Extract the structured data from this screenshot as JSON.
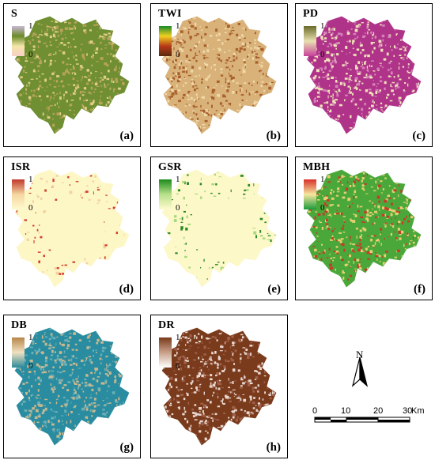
{
  "panels": [
    {
      "id": "a",
      "title": "S",
      "hi": "1",
      "lo": "0",
      "label": "(a)",
      "legend": [
        "#c9b8d6",
        "#6a8a2a",
        "#f3e6a8",
        "#f8d0c8"
      ],
      "base": "#6f8f32",
      "speck": "#b7a35a",
      "speck2": "#e0cf87"
    },
    {
      "id": "b",
      "title": "TWI",
      "hi": "1",
      "lo": "0",
      "label": "(b)",
      "legend": [
        "#1a8a2a",
        "#f0d020",
        "#b63a1a",
        "#5a2a0a"
      ],
      "base": "#d9b27a",
      "speck": "#a8602c",
      "speck2": "#f0d9a8"
    },
    {
      "id": "c",
      "title": "PD",
      "hi": "1",
      "lo": "0",
      "label": "(c)",
      "legend": [
        "#6b6b2a",
        "#e8e0b0",
        "#c8429a"
      ],
      "base": "#b0338a",
      "speck": "#eee3b8",
      "speck2": "#d483b8"
    },
    {
      "id": "d",
      "title": "ISR",
      "hi": "1",
      "lo": "0",
      "label": "(d)",
      "legend": [
        "#c0392b",
        "#f5d6a0",
        "#fffbd0"
      ],
      "base": "#fdf7c6",
      "speck": "#d44030",
      "speck2": "#f4d0a0"
    },
    {
      "id": "e",
      "title": "GSR",
      "hi": "1",
      "lo": "0",
      "label": "(e)",
      "legend": [
        "#1a8a1a",
        "#b8e08a",
        "#fffbd0"
      ],
      "base": "#fdf8c8",
      "speck": "#2a8a2a",
      "speck2": "#a8d880"
    },
    {
      "id": "f",
      "title": "MBH",
      "hi": "1",
      "lo": "0",
      "label": "(f)",
      "legend": [
        "#d73027",
        "#f5e6a0",
        "#1a9a3a"
      ],
      "base": "#4aa83a",
      "speck": "#e8d070",
      "speck2": "#c83a2a"
    },
    {
      "id": "g",
      "title": "DB",
      "hi": "1",
      "lo": "0",
      "label": "(g)",
      "legend": [
        "#b8864a",
        "#f0e0c0",
        "#2a8a9a"
      ],
      "base": "#2a8ca0",
      "speck": "#c8b890",
      "speck2": "#6ab0b8"
    },
    {
      "id": "h",
      "title": "DR",
      "hi": "1",
      "lo": "0",
      "label": "(h)",
      "legend": [
        "#7a3a1a",
        "#c8a08a",
        "#ffffff"
      ],
      "base": "#7a3a1c",
      "speck": "#e8d8d0",
      "speck2": "#a0604a"
    }
  ],
  "compass": {
    "label": "N"
  },
  "scale": {
    "ticks": [
      "0",
      "10",
      "20",
      "30"
    ],
    "unit": "Km"
  }
}
